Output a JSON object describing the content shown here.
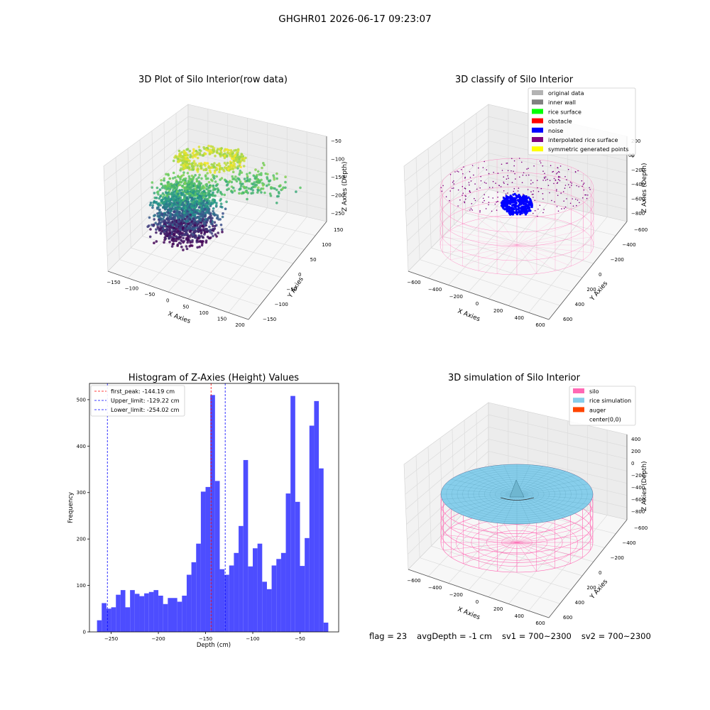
{
  "figure_title": "GHGHR01 2026-06-17 09:23:07",
  "status": {
    "flag": "flag = 23",
    "avg_depth": "avgDepth = -1 cm",
    "sv1": "sv1 = 700~2300",
    "sv2": "sv2 = 700~2300"
  },
  "colors": {
    "hist_bar": "#4d4dff",
    "peak_line": "#ff0000",
    "limit_line": "#0000ff",
    "silo": "#ff69b4",
    "rice_sim": "#87ceeb",
    "auger": "#ff4500",
    "noise": "#0000ff",
    "grid_pane": "#f2f2f2"
  },
  "chart_data": [
    {
      "type": "scatter",
      "panel": "raw",
      "title": "3D Plot of Silo Interior(row data)",
      "xlabel": "X Axies",
      "ylabel": "Y Axies",
      "zlabel": "Z Axies (Depth)",
      "x_ticks": [
        "−150",
        "−100",
        "−50",
        "0",
        "50",
        "100",
        "150",
        "200"
      ],
      "y_ticks": [
        "−150",
        "−100",
        "−50",
        "0",
        "50",
        "100",
        "150"
      ],
      "z_ticks": [
        "−50",
        "−100",
        "−150",
        "−200",
        "−250"
      ],
      "xlim": [
        -150,
        200
      ],
      "ylim": [
        -150,
        150
      ],
      "zlim": [
        -280,
        -30
      ],
      "colormap": "viridis",
      "grid": true
    },
    {
      "type": "scatter",
      "panel": "classify",
      "title": "3D classify of Silo Interior",
      "xlabel": "X Axies",
      "ylabel": "Y Axies",
      "zlabel": "Z Axies (Depth)",
      "x_ticks": [
        "−600",
        "−400",
        "−200",
        "0",
        "200",
        "400",
        "600"
      ],
      "y_ticks": [
        "600",
        "400",
        "200",
        "0",
        "−200",
        "−400",
        "−600"
      ],
      "z_ticks": [
        "200",
        "0",
        "−200",
        "−400",
        "−600",
        "−800"
      ],
      "legend_position": "upper-right",
      "legend": [
        {
          "label": "original data",
          "color": "#b3b3b3"
        },
        {
          "label": "inner wall",
          "color": "#808080"
        },
        {
          "label": "rice surface",
          "color": "#00ff00"
        },
        {
          "label": "obstacle",
          "color": "#ff0000"
        },
        {
          "label": "noise",
          "color": "#0000ff"
        },
        {
          "label": "interpolated rice surface",
          "color": "#800080"
        },
        {
          "label": "symmetric generated points",
          "color": "#ffff00"
        }
      ],
      "top_tick_partial": "00",
      "grid": true
    },
    {
      "type": "bar",
      "panel": "histogram",
      "title": "Histogram of Z-Axies (Height) Values",
      "xlabel": "Depth (cm)",
      "ylabel": "Frequency",
      "x_ticks": [
        -250,
        -200,
        -150,
        -100,
        -50
      ],
      "x_tick_labels": [
        "−250",
        "−200",
        "−150",
        "−100",
        "−50"
      ],
      "y_ticks": [
        0,
        100,
        200,
        300,
        400,
        500
      ],
      "xlim": [
        -273,
        -9
      ],
      "ylim": [
        0,
        535
      ],
      "bin_start": -265,
      "bin_width": 5,
      "values": [
        25,
        62,
        50,
        53,
        80,
        90,
        53,
        90,
        82,
        77,
        83,
        86,
        90,
        78,
        60,
        73,
        73,
        65,
        78,
        123,
        150,
        190,
        302,
        312,
        510,
        325,
        135,
        123,
        143,
        170,
        228,
        370,
        141,
        180,
        190,
        108,
        92,
        143,
        157,
        170,
        298,
        508,
        280,
        142,
        202,
        444,
        497,
        352,
        20
      ],
      "lines": [
        {
          "label": "first_peak: -144.19 cm",
          "value": -144.19,
          "role": "peak"
        },
        {
          "label": "Upper_limit: -129.22 cm",
          "value": -129.22,
          "role": "limit"
        },
        {
          "label": "Lower_limit: -254.02 cm",
          "value": -254.02,
          "role": "limit"
        }
      ],
      "legend_position": "upper-left",
      "grid": false
    },
    {
      "type": "surface",
      "panel": "simulation",
      "title": "3D simulation of Silo Interior",
      "xlabel": "X Axies",
      "ylabel": "Y Axies",
      "zlabel": "Z Axies (Depth)",
      "x_ticks": [
        "−600",
        "−400",
        "−200",
        "0",
        "200",
        "400",
        "600"
      ],
      "y_ticks": [
        "600",
        "400",
        "200",
        "0",
        "−200",
        "−400",
        "−600"
      ],
      "z_ticks": [
        "400",
        "200",
        "0",
        "−200",
        "−400",
        "−600",
        "−800"
      ],
      "legend_position": "upper-right",
      "legend": [
        {
          "label": "silo",
          "color": "#ff69b4"
        },
        {
          "label": "rice simulation",
          "color": "#87ceeb"
        },
        {
          "label": "auger",
          "color": "#ff4500"
        },
        {
          "label": "center(0,0)",
          "color": ""
        }
      ],
      "grid": true
    }
  ]
}
